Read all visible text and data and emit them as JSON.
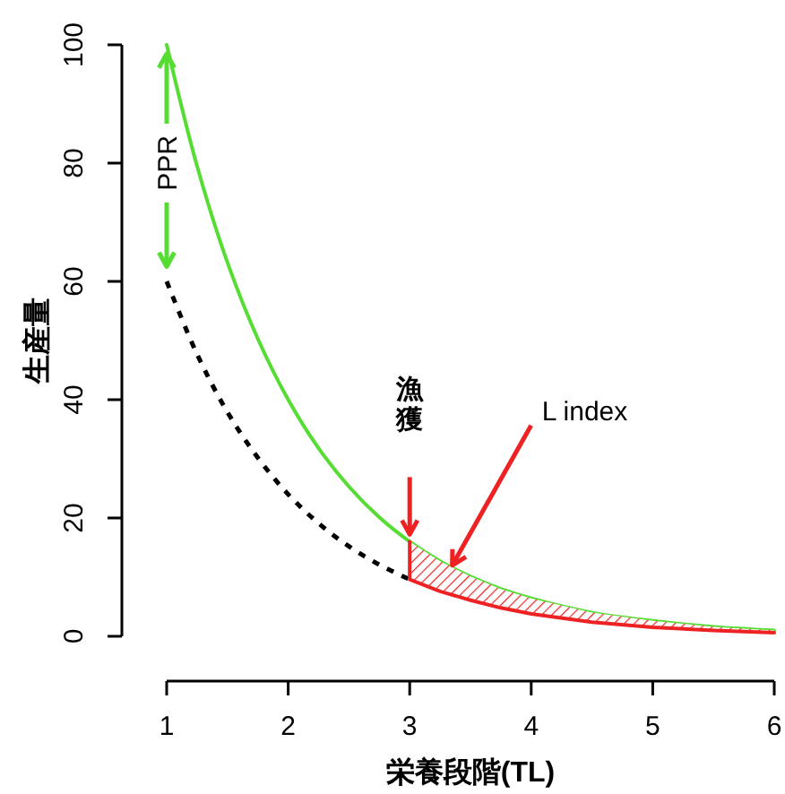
{
  "chart_data": {
    "type": "line",
    "xlabel": "栄養段階(TL)",
    "ylabel": "生産量",
    "xlim": [
      1,
      6
    ],
    "ylim": [
      0,
      100
    ],
    "xticks": [
      1,
      2,
      3,
      4,
      5,
      6
    ],
    "yticks": [
      0,
      20,
      40,
      60,
      80,
      100
    ],
    "grid": false,
    "marker": "none",
    "series": [
      {
        "color": "#55dd33",
        "line_style": "solid",
        "x": [
          1,
          1.25,
          1.5,
          1.75,
          2,
          2.25,
          2.5,
          2.75,
          3,
          3.25,
          3.5,
          3.75,
          4,
          4.5,
          5,
          5.5,
          6
        ],
        "values": [
          100,
          79.5,
          63.2,
          50.3,
          40,
          31.8,
          25.3,
          20.1,
          16,
          12.7,
          10.1,
          8.0,
          6.4,
          4.0,
          2.6,
          1.6,
          1.0
        ]
      },
      {
        "color": "#000000",
        "line_style": "dashed",
        "x": [
          1,
          1.25,
          1.5,
          1.75,
          2,
          2.25,
          2.5,
          2.75,
          3
        ],
        "values": [
          60,
          47.7,
          37.9,
          30.2,
          24,
          19.1,
          15.2,
          12.1,
          9.6
        ]
      },
      {
        "color": "#ee2222",
        "line_style": "solid",
        "x": [
          3,
          3,
          3.25,
          3.5,
          3.75,
          4,
          4.5,
          5,
          5.5,
          6
        ],
        "values": [
          16,
          9.6,
          7.6,
          6.1,
          4.8,
          3.8,
          2.4,
          1.5,
          1.0,
          0.6
        ],
        "lower": [
          16,
          9.6,
          7.6,
          6.1,
          4.8,
          3.8,
          2.4,
          1.5,
          1.0,
          0.6
        ],
        "upper": [
          16,
          16,
          12.7,
          10.1,
          8.0,
          6.4,
          4.0,
          2.6,
          1.6,
          1.0
        ]
      }
    ],
    "annotations": [
      "PPR",
      "漁獲",
      {
        "text": "L index",
        "x": 3.35,
        "y": 12
      }
    ]
  }
}
